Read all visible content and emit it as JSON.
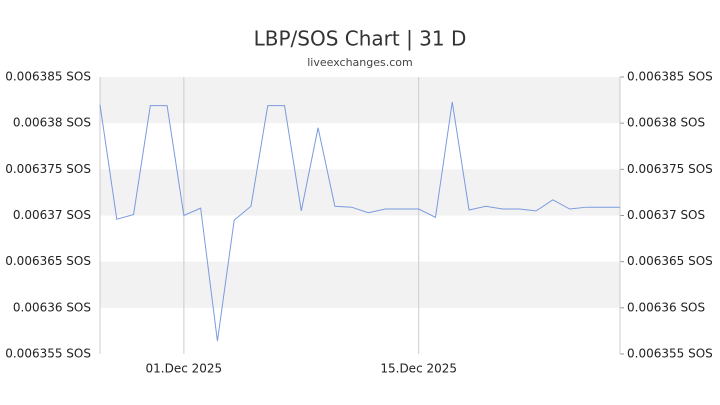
{
  "chart_data": {
    "type": "line",
    "title": "LBP/SOS Chart | 31 D",
    "subtitle": "liveexchanges.com",
    "categories": [
      null,
      null,
      null,
      null,
      null,
      "01.Dec 2025",
      null,
      null,
      null,
      null,
      null,
      null,
      null,
      null,
      null,
      null,
      null,
      null,
      null,
      "15.Dec 2025",
      null,
      null,
      null,
      null,
      null,
      null,
      null,
      null,
      null,
      null,
      null,
      null
    ],
    "series": [
      {
        "name": "LBP/SOS",
        "color": "#7b9be0",
        "values": [
          0.006382,
          0.0063696,
          0.0063701,
          0.0063819,
          0.0063819,
          0.00637,
          0.0063708,
          0.0063564,
          0.0063695,
          0.006371,
          0.0063819,
          0.0063819,
          0.0063705,
          0.0063795,
          0.006371,
          0.0063709,
          0.0063703,
          0.0063707,
          0.0063707,
          0.0063707,
          0.0063698,
          0.0063823,
          0.0063706,
          0.006371,
          0.0063707,
          0.0063707,
          0.0063705,
          0.0063717,
          0.0063707,
          0.0063709,
          0.0063709,
          0.0063709
        ]
      }
    ],
    "ylim": [
      0.006355,
      0.006385
    ],
    "yticks": [
      {
        "value": 0.006385,
        "label": "0.006385 SOS"
      },
      {
        "value": 0.00638,
        "label": "0.00638 SOS"
      },
      {
        "value": 0.006375,
        "label": "0.006375 SOS"
      },
      {
        "value": 0.00637,
        "label": "0.00637 SOS"
      },
      {
        "value": 0.006365,
        "label": "0.006365 SOS"
      },
      {
        "value": 0.00636,
        "label": "0.00636 SOS"
      },
      {
        "value": 0.006355,
        "label": "0.006355 SOS"
      }
    ],
    "grid": true
  }
}
